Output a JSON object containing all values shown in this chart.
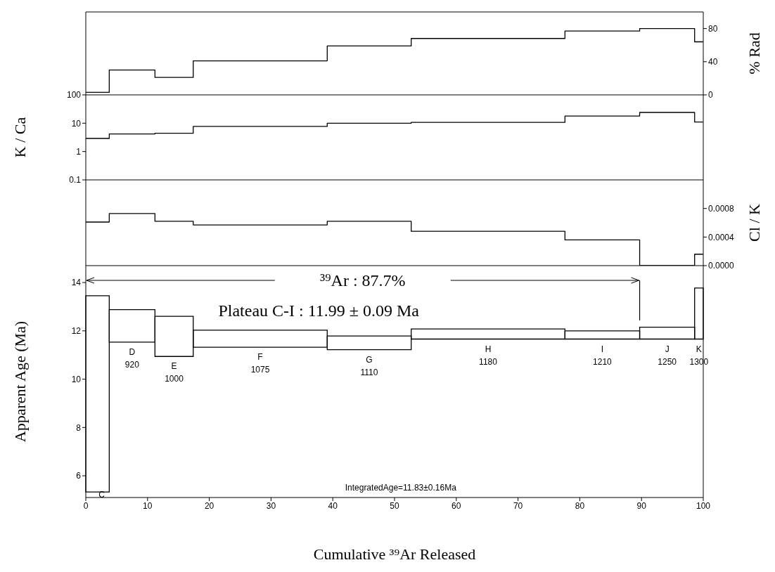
{
  "chart_data": [
    {
      "type": "step",
      "x": [
        0,
        3.8,
        11.2,
        17.4,
        39.1,
        52.7,
        77.6,
        89.7,
        98.6,
        100
      ],
      "xlim": [
        0,
        100
      ],
      "y2label": "% Rad",
      "y2lim": [
        0,
        100
      ],
      "y2ticks": [
        0,
        40,
        80
      ],
      "tick_labels": "y",
      "series": [
        {
          "color": "#000000",
          "axis": "y2",
          "values": [
            3,
            30,
            21,
            41,
            59,
            68,
            77,
            80,
            64,
            64
          ]
        }
      ]
    },
    {
      "type": "step",
      "x": [
        0,
        3.8,
        11.2,
        17.4,
        39.1,
        52.7,
        77.6,
        89.7,
        98.6,
        100
      ],
      "xlim": [
        0,
        100
      ],
      "ylabel": "K / Ca",
      "ylim": [
        0.1,
        100
      ],
      "yticks": [
        0.1,
        1,
        10,
        100
      ],
      "log": true,
      "tick_labels": "y",
      "series": [
        {
          "color": "#000000",
          "values": [
            2.9,
            4.2,
            4.4,
            7.7,
            10,
            10.7,
            18,
            24,
            11,
            11
          ]
        }
      ]
    },
    {
      "type": "step",
      "x": [
        0,
        3.8,
        11.2,
        17.4,
        39.1,
        52.7,
        77.6,
        89.7,
        98.6,
        100
      ],
      "xlim": [
        0,
        100
      ],
      "y2label": "Cl / K",
      "y2lim": [
        0,
        0.0012
      ],
      "y2ticks": [
        {
          "value": 0,
          "label": "0.0000"
        },
        {
          "value": 0.0004,
          "label": "0.0004"
        },
        {
          "value": 0.0008,
          "label": "0.0008"
        }
      ],
      "tick_labels": "y",
      "series": [
        {
          "color": "#000000",
          "axis": "y2",
          "values": [
            0.00061,
            0.00073,
            0.00062,
            0.00057,
            0.00062,
            0.00048,
            0.00036,
            0,
            0.00016,
            0.00016
          ]
        }
      ]
    },
    {
      "type": "histogram",
      "bins": [
        0,
        3.8,
        11.2,
        17.4,
        39.1,
        52.7,
        77.6,
        89.7,
        98.6,
        100
      ],
      "color": "#000000",
      "base": [
        5.33,
        11.53,
        10.94,
        11.32,
        11.22,
        11.66,
        11.66,
        11.66,
        11.66
      ],
      "values": [
        8.12,
        1.35,
        1.66,
        0.71,
        0.57,
        0.42,
        0.34,
        0.49,
        2.11
      ],
      "xlabel": "Cumulative ³⁹Ar Released",
      "ylabel": "Apparent Age (Ma)",
      "xlim": [
        0,
        100
      ],
      "xticks": [
        0,
        10,
        20,
        30,
        40,
        50,
        60,
        70,
        80,
        90,
        100
      ],
      "ylim": [
        5.1,
        14.7
      ],
      "yticks": [
        6,
        8,
        10,
        12,
        14
      ],
      "ref_lines": [
        {
          "axis": "x",
          "value": 89.7
        }
      ],
      "annotations": [
        "³⁹Ar : 87.7%",
        "Plateau C-I : 11.99 ± 0.09 Ma",
        "IntegratedAge=11.83±0.16Ma",
        "C",
        "D",
        "920",
        "E",
        "1000",
        "F",
        "1075",
        "G",
        "1110",
        "H",
        "1180",
        "I",
        "1210",
        "J",
        "1250",
        "K",
        "1300"
      ]
    }
  ]
}
